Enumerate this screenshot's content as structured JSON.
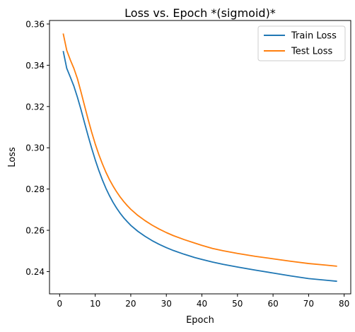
{
  "chart_data": {
    "type": "line",
    "title": "Loss vs. Epoch  *(sigmoid)*",
    "xlabel": "Epoch",
    "ylabel": "Loss",
    "xlim": [
      -2.85,
      81.85
    ],
    "ylim": [
      0.2292,
      0.3617
    ],
    "xticks": [
      0,
      10,
      20,
      30,
      40,
      50,
      60,
      70,
      80
    ],
    "yticks": [
      0.24,
      0.26,
      0.28,
      0.3,
      0.32,
      0.34,
      0.36
    ],
    "ytick_labels": [
      "0.24",
      "0.26",
      "0.28",
      "0.30",
      "0.32",
      "0.34",
      "0.36"
    ],
    "grid": false,
    "legend_position": "top-right",
    "series": [
      {
        "name": "Train Loss",
        "color": "#1f77b4",
        "points": [
          [
            1,
            0.3469
          ],
          [
            2,
            0.3385
          ],
          [
            3,
            0.3343
          ],
          [
            4,
            0.3299
          ],
          [
            5,
            0.3245
          ],
          [
            6,
            0.3185
          ],
          [
            7,
            0.3121
          ],
          [
            8,
            0.3058
          ],
          [
            9,
            0.2998
          ],
          [
            10,
            0.2942
          ],
          [
            11,
            0.2891
          ],
          [
            12,
            0.2845
          ],
          [
            13,
            0.2804
          ],
          [
            14,
            0.2768
          ],
          [
            15,
            0.2736
          ],
          [
            16,
            0.2708
          ],
          [
            17,
            0.2683
          ],
          [
            18,
            0.2661
          ],
          [
            19,
            0.2642
          ],
          [
            20,
            0.2624
          ],
          [
            22,
            0.2595
          ],
          [
            24,
            0.2571
          ],
          [
            26,
            0.255
          ],
          [
            28,
            0.2532
          ],
          [
            30,
            0.2516
          ],
          [
            32,
            0.2502
          ],
          [
            35,
            0.2484
          ],
          [
            38,
            0.2468
          ],
          [
            40,
            0.2459
          ],
          [
            43,
            0.2446
          ],
          [
            46,
            0.2435
          ],
          [
            50,
            0.2422
          ],
          [
            55,
            0.2407
          ],
          [
            60,
            0.2393
          ],
          [
            65,
            0.2379
          ],
          [
            70,
            0.2366
          ],
          [
            75,
            0.2358
          ],
          [
            78,
            0.2353
          ]
        ]
      },
      {
        "name": "Test Loss",
        "color": "#ff7f0e",
        "points": [
          [
            1,
            0.3554
          ],
          [
            2,
            0.3472
          ],
          [
            3,
            0.3426
          ],
          [
            4,
            0.3385
          ],
          [
            5,
            0.3335
          ],
          [
            6,
            0.3271
          ],
          [
            7,
            0.3204
          ],
          [
            8,
            0.3138
          ],
          [
            9,
            0.3076
          ],
          [
            10,
            0.3019
          ],
          [
            11,
            0.2968
          ],
          [
            12,
            0.2923
          ],
          [
            13,
            0.2882
          ],
          [
            14,
            0.2846
          ],
          [
            15,
            0.2815
          ],
          [
            16,
            0.2787
          ],
          [
            17,
            0.2762
          ],
          [
            18,
            0.274
          ],
          [
            19,
            0.272
          ],
          [
            20,
            0.2702
          ],
          [
            22,
            0.2672
          ],
          [
            24,
            0.2647
          ],
          [
            26,
            0.2625
          ],
          [
            28,
            0.2606
          ],
          [
            30,
            0.2589
          ],
          [
            32,
            0.2574
          ],
          [
            35,
            0.2555
          ],
          [
            38,
            0.2538
          ],
          [
            40,
            0.2527
          ],
          [
            43,
            0.2512
          ],
          [
            46,
            0.2501
          ],
          [
            50,
            0.2488
          ],
          [
            55,
            0.2474
          ],
          [
            60,
            0.2462
          ],
          [
            65,
            0.245
          ],
          [
            70,
            0.2439
          ],
          [
            75,
            0.2431
          ],
          [
            78,
            0.2426
          ]
        ]
      }
    ]
  }
}
